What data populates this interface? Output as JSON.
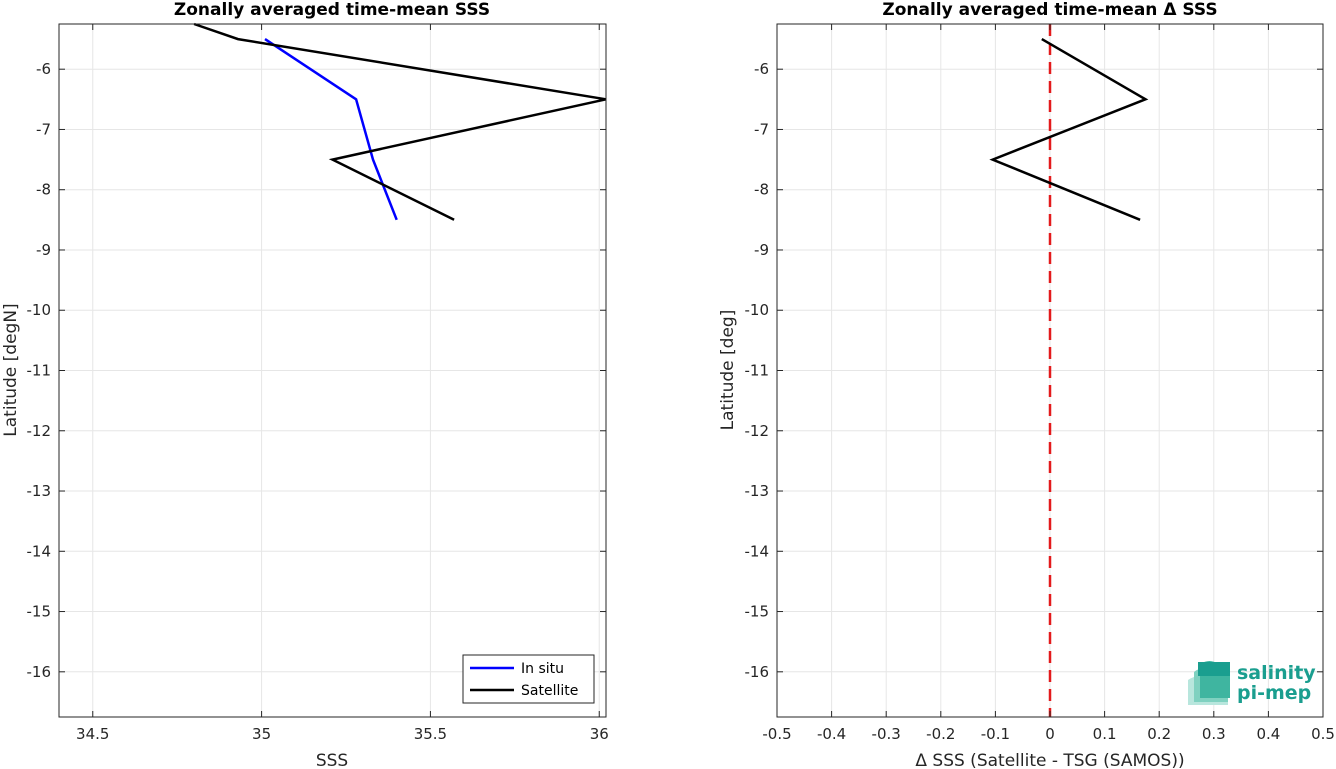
{
  "chart_data": [
    {
      "type": "line",
      "title": "Zonally averaged time-mean SSS",
      "xlabel": "SSS",
      "ylabel": "Latitude [degN]",
      "xlim": [
        34.4,
        36.02
      ],
      "ylim": [
        -16.75,
        -5.25
      ],
      "xticks": [
        34.5,
        35,
        35.5,
        36
      ],
      "xtick_labels": [
        "34.5",
        "35",
        "35.5",
        "36"
      ],
      "yticks": [
        -6,
        -7,
        -8,
        -9,
        -10,
        -11,
        -12,
        -13,
        -14,
        -15,
        -16
      ],
      "ytick_labels": [
        "-6",
        "-7",
        "-8",
        "-9",
        "-10",
        "-11",
        "-12",
        "-13",
        "-14",
        "-15",
        "-16"
      ],
      "grid": true,
      "legend_position": "bottom-right",
      "series": [
        {
          "name": "In situ",
          "color": "#0000ff",
          "x": [
            35.01,
            35.28,
            35.33,
            35.4
          ],
          "y": [
            -5.5,
            -6.5,
            -7.5,
            -8.5
          ]
        },
        {
          "name": "Satellite",
          "color": "#000000",
          "x": [
            34.8,
            34.93,
            36.02,
            35.21,
            35.57
          ],
          "y": [
            -5.25,
            -5.5,
            -6.5,
            -7.5,
            -8.5
          ]
        }
      ]
    },
    {
      "type": "line",
      "title": "Zonally averaged time-mean Δ SSS",
      "xlabel": "Δ SSS (Satellite - TSG (SAMOS))",
      "ylabel": "Latitude [deg]",
      "xlim": [
        -0.5,
        0.5
      ],
      "ylim": [
        -16.75,
        -5.25
      ],
      "xticks": [
        -0.5,
        -0.4,
        -0.3,
        -0.2,
        -0.1,
        0,
        0.1,
        0.2,
        0.3,
        0.4,
        0.5
      ],
      "xtick_labels": [
        "-0.5",
        "-0.4",
        "-0.3",
        "-0.2",
        "-0.1",
        "0",
        "0.1",
        "0.2",
        "0.3",
        "0.4",
        "0.5"
      ],
      "yticks": [
        -6,
        -7,
        -8,
        -9,
        -10,
        -11,
        -12,
        -13,
        -14,
        -15,
        -16
      ],
      "ytick_labels": [
        "-6",
        "-7",
        "-8",
        "-9",
        "-10",
        "-11",
        "-12",
        "-13",
        "-14",
        "-15",
        "-16"
      ],
      "grid": true,
      "reference_line": {
        "x": 0,
        "color": "#e31a1c",
        "style": "dashed"
      },
      "series": [
        {
          "color": "#000000",
          "x": [
            -0.015,
            0.175,
            -0.105,
            0.165
          ],
          "y": [
            -5.5,
            -6.5,
            -7.5,
            -8.5
          ]
        }
      ]
    }
  ],
  "logo": {
    "line1": "salinity",
    "line2": "pi-mep",
    "color": "#1a9e8f"
  }
}
